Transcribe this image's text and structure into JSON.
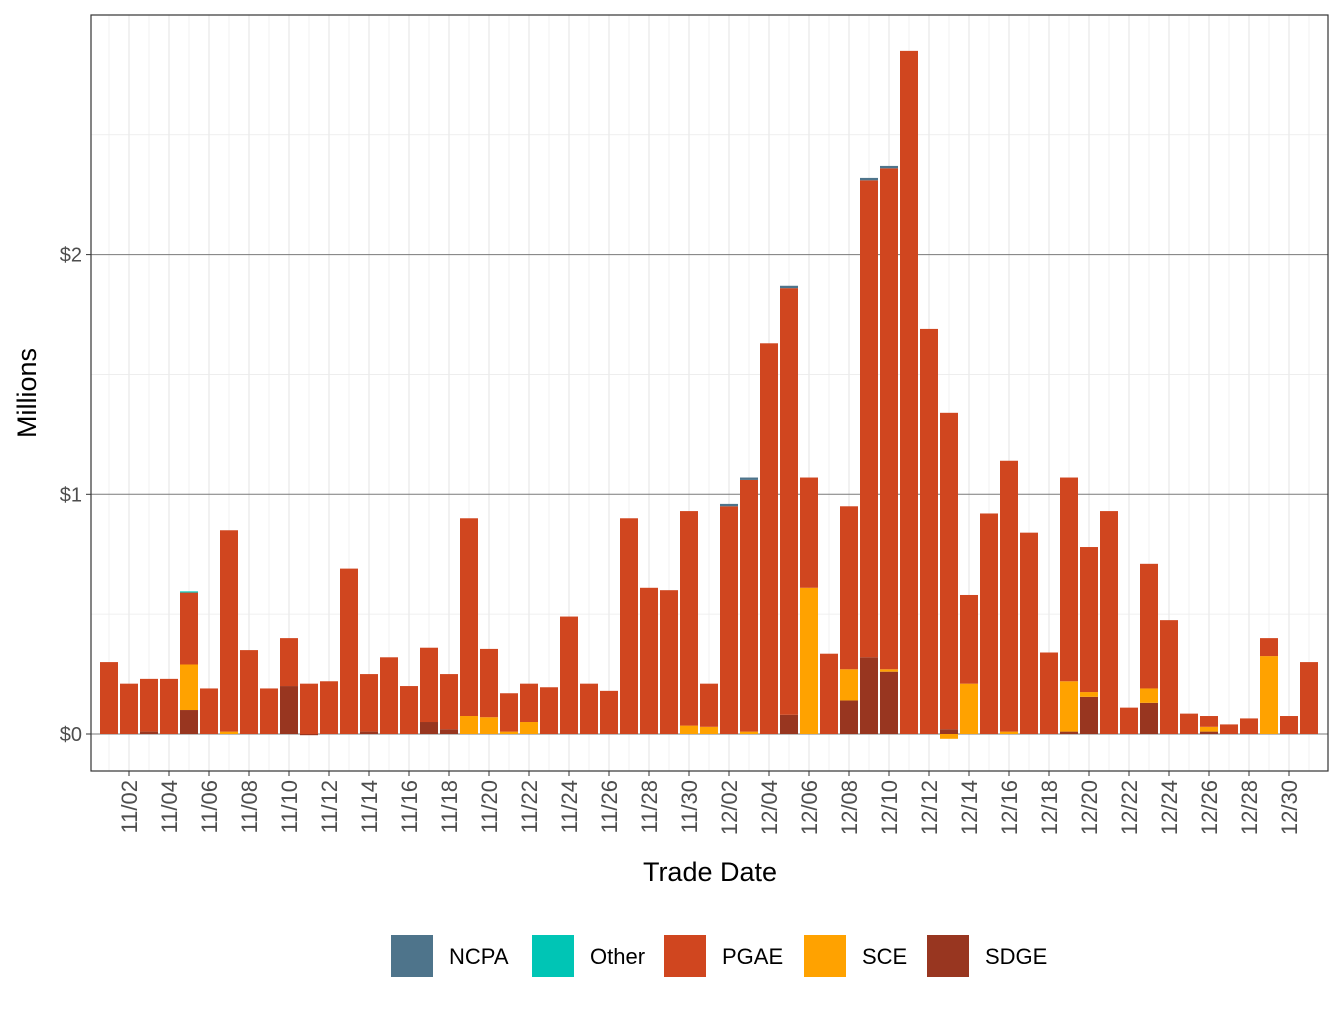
{
  "chart_data": {
    "type": "bar",
    "stacked": true,
    "xlabel": "Trade Date",
    "ylabel": "Millions",
    "ylim": [
      -0.154,
      3.0
    ],
    "y_ticks": [
      0,
      1,
      2
    ],
    "y_tick_labels": [
      "$0",
      "$1",
      "$2"
    ],
    "grid": true,
    "legend_position": "bottom",
    "categories": [
      "11/01",
      "11/02",
      "11/03",
      "11/04",
      "11/05",
      "11/06",
      "11/07",
      "11/08",
      "11/09",
      "11/10",
      "11/11",
      "11/12",
      "11/13",
      "11/14",
      "11/15",
      "11/16",
      "11/17",
      "11/18",
      "11/19",
      "11/20",
      "11/21",
      "11/22",
      "11/23",
      "11/24",
      "11/25",
      "11/26",
      "11/27",
      "11/28",
      "11/29",
      "11/30",
      "12/01",
      "12/02",
      "12/03",
      "12/04",
      "12/05",
      "12/06",
      "12/07",
      "12/08",
      "12/09",
      "12/10",
      "12/11",
      "12/12",
      "12/13",
      "12/14",
      "12/15",
      "12/16",
      "12/17",
      "12/18",
      "12/19",
      "12/20",
      "12/21",
      "12/22",
      "12/23",
      "12/24",
      "12/25",
      "12/26",
      "12/27",
      "12/28",
      "12/29",
      "12/30",
      "12/31"
    ],
    "x_tick_labels": [
      "11/02",
      "11/04",
      "11/06",
      "11/08",
      "11/10",
      "11/12",
      "11/14",
      "11/16",
      "11/18",
      "11/20",
      "11/22",
      "11/24",
      "11/26",
      "11/28",
      "11/30",
      "12/02",
      "12/04",
      "12/06",
      "12/08",
      "12/10",
      "12/12",
      "12/14",
      "12/16",
      "12/18",
      "12/20",
      "12/22",
      "12/24",
      "12/26",
      "12/28",
      "12/30"
    ],
    "series": [
      {
        "name": "SDGE",
        "color": "#983620",
        "values": [
          0,
          0,
          0.01,
          0,
          0.1,
          0,
          0,
          0,
          0,
          0.2,
          -0.005,
          0,
          0,
          0.01,
          0,
          0,
          0.05,
          0.02,
          0,
          0,
          0,
          0,
          0,
          0,
          0,
          0,
          0,
          0,
          0,
          0,
          0,
          0,
          0,
          0,
          0.08,
          0,
          0,
          0.14,
          0.32,
          0.26,
          0,
          0,
          0.02,
          0,
          0,
          0,
          0,
          0,
          0.01,
          0.155,
          0,
          0,
          0.13,
          0,
          0,
          0.01,
          0,
          0,
          0,
          0,
          0
        ]
      },
      {
        "name": "SCE",
        "color": "#FFA200",
        "values": [
          0,
          0,
          0,
          0,
          0.19,
          0,
          0.01,
          0,
          0,
          0,
          0,
          0,
          0,
          0,
          0,
          0,
          0,
          0,
          0.075,
          0.07,
          0.01,
          0.05,
          0,
          0,
          0,
          0,
          0,
          0,
          0,
          0.035,
          0.03,
          0,
          0.01,
          0,
          0,
          0.61,
          0,
          0.13,
          0,
          0.01,
          0,
          0,
          -0.02,
          0.21,
          0,
          0.01,
          0,
          0,
          0.21,
          0.02,
          0,
          0,
          0.06,
          0,
          0,
          0.02,
          0,
          0,
          0.325,
          0,
          0
        ]
      },
      {
        "name": "PGAE",
        "color": "#D0461F",
        "values": [
          0.3,
          0.21,
          0.22,
          0.23,
          0.3,
          0.19,
          0.84,
          0.35,
          0.19,
          0.2,
          0.21,
          0.22,
          0.69,
          0.24,
          0.32,
          0.2,
          0.31,
          0.23,
          0.825,
          0.285,
          0.16,
          0.16,
          0.195,
          0.49,
          0.21,
          0.18,
          0.9,
          0.61,
          0.6,
          0.895,
          0.18,
          0.95,
          1.05,
          1.63,
          1.78,
          0.46,
          0.335,
          0.68,
          1.99,
          2.09,
          2.85,
          1.69,
          1.32,
          0.37,
          0.92,
          1.13,
          0.84,
          0.34,
          0.85,
          0.605,
          0.93,
          0.11,
          0.52,
          0.475,
          0.085,
          0.045,
          0.04,
          0.065,
          0.075,
          0.075,
          0.3
        ]
      },
      {
        "name": "Other",
        "color": "#00C5B5",
        "values": [
          0,
          0,
          0,
          0,
          0.005,
          0,
          0,
          0,
          0,
          0,
          0,
          0,
          0,
          0,
          0,
          0,
          0,
          0,
          0,
          0,
          0,
          0,
          0,
          0,
          0,
          0,
          0,
          0,
          0,
          0,
          0,
          0,
          0,
          0,
          0,
          0,
          0,
          0,
          0,
          0,
          0,
          0,
          0,
          0,
          0,
          0,
          0,
          0,
          0,
          0,
          0,
          0,
          0,
          0,
          0,
          0,
          0,
          0,
          0,
          0,
          0
        ]
      },
      {
        "name": "NCPA",
        "color": "#4E748B",
        "values": [
          0,
          0,
          0,
          0,
          0,
          0,
          0,
          0,
          0,
          0,
          0,
          0,
          0,
          0,
          0,
          0,
          0,
          0,
          0,
          0,
          0,
          0,
          0,
          0,
          0,
          0,
          0,
          0,
          0,
          0,
          0,
          0.01,
          0.01,
          0,
          0.01,
          0,
          0,
          0,
          0.01,
          0.01,
          0,
          0,
          0,
          0,
          0,
          0,
          0,
          0,
          0,
          0,
          0,
          0,
          0,
          0,
          0,
          0,
          0,
          0,
          0,
          0,
          0
        ]
      }
    ],
    "legend": [
      "NCPA",
      "Other",
      "PGAE",
      "SCE",
      "SDGE"
    ]
  }
}
